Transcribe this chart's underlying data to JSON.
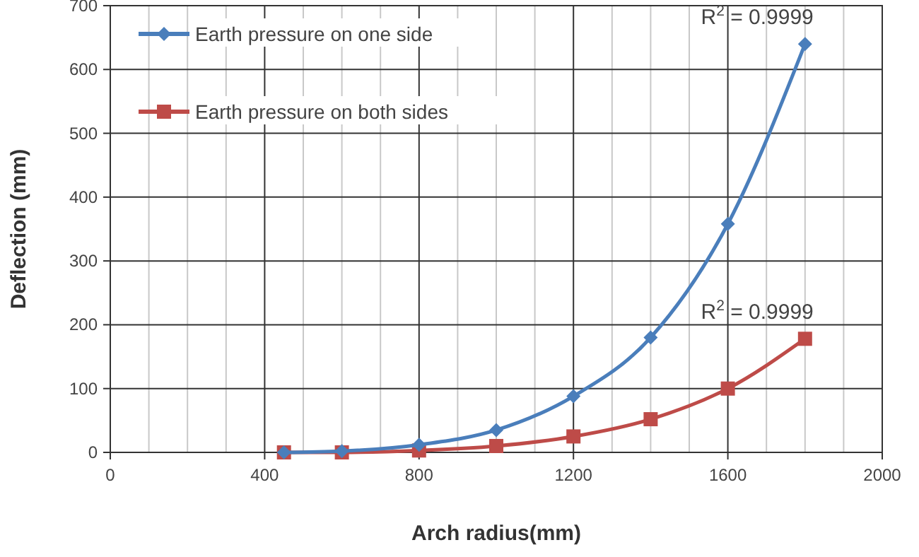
{
  "chart_data": {
    "type": "line",
    "xlabel": "Arch  radius(mm)",
    "ylabel": "Deflection  (mm)",
    "xlim": [
      0,
      2000
    ],
    "ylim": [
      0,
      700
    ],
    "xticks": [
      0,
      {
        "value": 100,
        "label": null
      },
      {
        "value": 200,
        "label": null
      },
      {
        "value": 300,
        "label": null
      },
      400,
      {
        "value": 500,
        "label": null
      },
      {
        "value": 600,
        "label": null
      },
      {
        "value": 700,
        "label": null
      },
      800,
      {
        "value": 900,
        "label": null
      },
      {
        "value": 1000,
        "label": null
      },
      {
        "value": 1100,
        "label": null
      },
      1200,
      {
        "value": 1300,
        "label": null
      },
      {
        "value": 1400,
        "label": null
      },
      {
        "value": 1500,
        "label": null
      },
      1600,
      {
        "value": 1700,
        "label": null
      },
      {
        "value": 1800,
        "label": null
      },
      {
        "value": 1900,
        "label": null
      },
      2000
    ],
    "yticks": [
      0,
      100,
      200,
      300,
      400,
      500,
      600,
      700
    ],
    "grid": true,
    "legend": "top left",
    "line_style": "solid",
    "x": [
      450,
      600,
      800,
      1000,
      1200,
      1400,
      1600,
      1800
    ],
    "series": [
      {
        "name": "Earth pressure on one side",
        "color": "#4a7ebb",
        "marker": "diamond",
        "values": [
          0,
          2,
          12,
          35,
          88,
          180,
          358,
          640
        ]
      },
      {
        "name": "Earth pressure on both sides",
        "color": "#be4b48",
        "marker": "square",
        "values": [
          0,
          0,
          3,
          10,
          25,
          52,
          100,
          178
        ]
      }
    ],
    "annotations": [
      {
        "text": "R$^{2}$ = 0.9999",
        "x": 1800,
        "y": 640
      },
      {
        "text": "R$^{2}$ = 0.9999",
        "x": 1800,
        "y": 178
      }
    ]
  }
}
